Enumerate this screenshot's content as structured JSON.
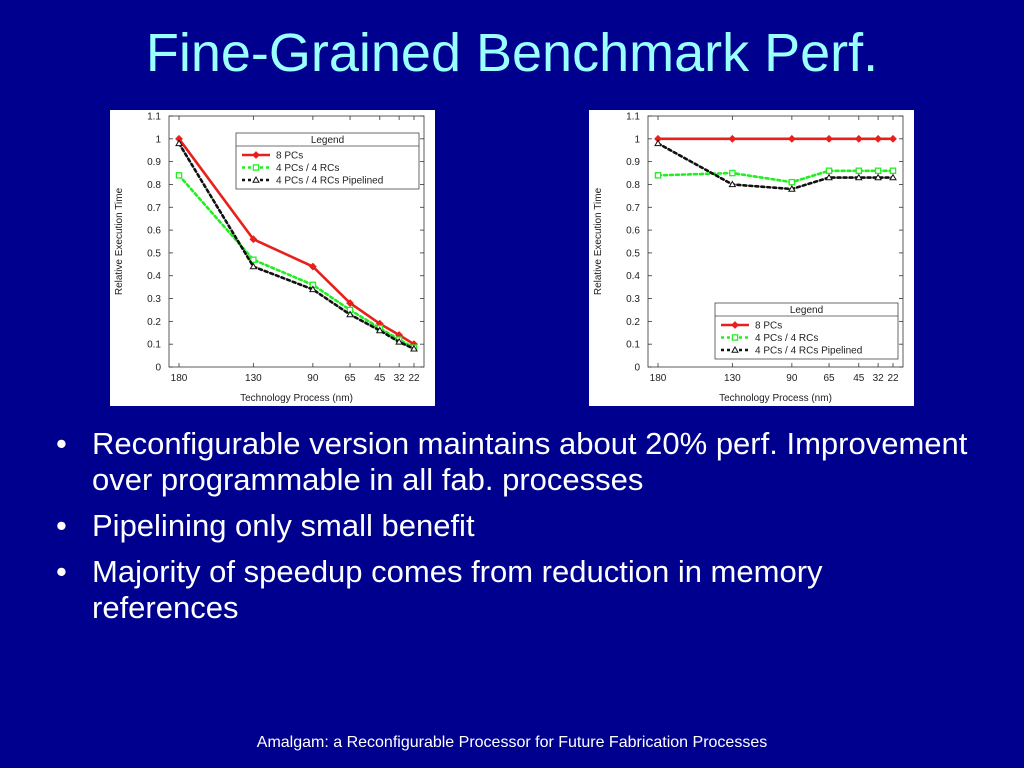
{
  "slide": {
    "title": "Fine-Grained Benchmark Perf.",
    "footer": "Amalgam: a Reconfigurable Processor for Future Fabrication Processes"
  },
  "bullets": [
    "Reconfigurable version maintains about 20% perf. Improvement over programmable in all fab. processes",
    "Pipelining only small benefit",
    "Majority of speedup comes from reduction in memory references"
  ],
  "chart_data": [
    {
      "type": "line",
      "xlabel": "Technology Process (nm)",
      "ylabel": "Relative Execution Time",
      "x": [
        180,
        130,
        90,
        65,
        45,
        32,
        22
      ],
      "x_order": "descending",
      "ylim": [
        0,
        1.1
      ],
      "yticks": [
        0,
        0.1,
        0.2,
        0.3,
        0.4,
        0.5,
        0.6,
        0.7,
        0.8,
        0.9,
        1,
        1.1
      ],
      "grid": false,
      "legend_title": "Legend",
      "legend_position": "top-right",
      "series": [
        {
          "name": "8 PCs",
          "color": "#e8201c",
          "marker": "diamond",
          "dash": "solid",
          "values": [
            1.0,
            0.56,
            0.44,
            0.28,
            0.19,
            0.14,
            0.1
          ]
        },
        {
          "name": "4 PCs / 4 RCs",
          "color": "#22ee22",
          "marker": "square",
          "dash": "dotted",
          "values": [
            0.84,
            0.47,
            0.36,
            0.25,
            0.17,
            0.12,
            0.085
          ]
        },
        {
          "name": "4 PCs / 4 RCs Pipelined",
          "color": "#111111",
          "marker": "triangle",
          "dash": "dotted",
          "values": [
            0.98,
            0.44,
            0.34,
            0.23,
            0.16,
            0.11,
            0.08
          ]
        }
      ]
    },
    {
      "type": "line",
      "xlabel": "Technology Process (nm)",
      "ylabel": "Relative Execution Time",
      "x": [
        180,
        130,
        90,
        65,
        45,
        32,
        22
      ],
      "x_order": "descending",
      "ylim": [
        0,
        1.1
      ],
      "yticks": [
        0,
        0.1,
        0.2,
        0.3,
        0.4,
        0.5,
        0.6,
        0.7,
        0.8,
        0.9,
        1,
        1.1
      ],
      "grid": false,
      "legend_title": "Legend",
      "legend_position": "bottom-right",
      "series": [
        {
          "name": "8 PCs",
          "color": "#e8201c",
          "marker": "diamond",
          "dash": "solid",
          "values": [
            1.0,
            1.0,
            1.0,
            1.0,
            1.0,
            1.0,
            1.0
          ]
        },
        {
          "name": "4 PCs / 4 RCs",
          "color": "#22ee22",
          "marker": "square",
          "dash": "dotted",
          "values": [
            0.84,
            0.85,
            0.81,
            0.86,
            0.86,
            0.86,
            0.86
          ]
        },
        {
          "name": "4 PCs / 4 RCs Pipelined",
          "color": "#111111",
          "marker": "triangle",
          "dash": "dotted",
          "values": [
            0.98,
            0.8,
            0.78,
            0.83,
            0.83,
            0.83,
            0.83
          ]
        }
      ]
    }
  ]
}
